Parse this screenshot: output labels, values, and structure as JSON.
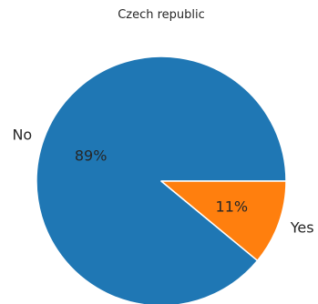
{
  "chart_data": {
    "type": "pie",
    "title": "Czech republic",
    "slices": [
      {
        "label": "No",
        "value": 89,
        "pct_label": "89%",
        "color": "#1f77b4"
      },
      {
        "label": "Yes",
        "value": 11,
        "pct_label": "11%",
        "color": "#ff7f0e"
      }
    ],
    "start_angle_deg": 0,
    "direction": "counterclockwise",
    "slice_edge_color": "#ffffff"
  }
}
